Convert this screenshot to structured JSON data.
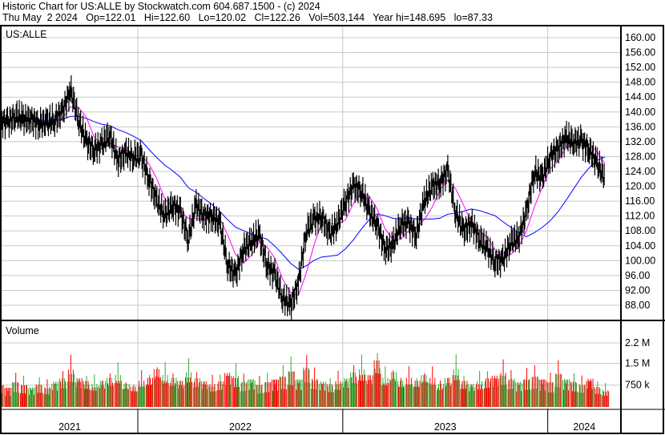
{
  "header": {
    "title": "Historic Chart for US:ALLE by Stockwatch.com 604.687.1500 - (c) 2024",
    "quote": "Thu May  2 2024   Op=122.01   Hi=122.60   Lo=120.02   Cl=122.26   Vol=503,144   Year hi=148.695   lo=87.33"
  },
  "colors": {
    "price": "#000000",
    "ma_short": "#ff00ff",
    "ma_long": "#0000ff",
    "vol_up": "#33aa33",
    "vol_down": "#ff0000",
    "grid": "#c8c8c8"
  },
  "chart_data": [
    {
      "type": "line",
      "title": "US:ALLE",
      "ylim": [
        86,
        162
      ],
      "yticks": [
        "160.00",
        "156.00",
        "152.00",
        "148.00",
        "144.00",
        "140.00",
        "136.00",
        "132.00",
        "128.00",
        "124.00",
        "120.00",
        "116.00",
        "112.00",
        "108.00",
        "104.00",
        "100.00",
        "96.00",
        "92.00",
        "88.00"
      ],
      "xticks": [
        "2021",
        "2022",
        "2023",
        "2024"
      ],
      "grid": true,
      "dates": [
        "2021-04-30",
        "2021-05-14",
        "2021-05-28",
        "2021-06-11",
        "2021-06-25",
        "2021-07-09",
        "2021-07-23",
        "2021-08-06",
        "2021-08-20",
        "2021-09-03",
        "2021-09-17",
        "2021-10-01",
        "2021-10-15",
        "2021-10-29",
        "2021-11-12",
        "2021-11-26",
        "2021-12-10",
        "2021-12-24",
        "2022-01-07",
        "2022-01-21",
        "2022-02-04",
        "2022-02-18",
        "2022-03-04",
        "2022-03-18",
        "2022-04-01",
        "2022-04-15",
        "2022-04-29",
        "2022-05-13",
        "2022-05-27",
        "2022-06-10",
        "2022-06-24",
        "2022-07-08",
        "2022-07-22",
        "2022-08-05",
        "2022-08-19",
        "2022-09-02",
        "2022-09-16",
        "2022-09-30",
        "2022-10-14",
        "2022-10-28",
        "2022-11-11",
        "2022-11-25",
        "2022-12-09",
        "2022-12-23",
        "2023-01-06",
        "2023-01-20",
        "2023-02-03",
        "2023-02-17",
        "2023-03-03",
        "2023-03-17",
        "2023-03-31",
        "2023-04-14",
        "2023-04-28",
        "2023-05-12",
        "2023-05-26",
        "2023-06-09",
        "2023-06-23",
        "2023-07-07",
        "2023-07-21",
        "2023-08-04",
        "2023-08-18",
        "2023-09-01",
        "2023-09-15",
        "2023-09-29",
        "2023-10-13",
        "2023-10-27",
        "2023-11-10",
        "2023-11-24",
        "2023-12-08",
        "2023-12-22",
        "2024-01-05",
        "2024-01-19",
        "2024-02-02",
        "2024-02-16",
        "2024-03-01",
        "2024-03-15",
        "2024-03-29",
        "2024-04-12"
      ],
      "close": [
        138,
        137,
        139,
        138,
        138,
        137,
        137,
        138,
        140,
        146,
        138,
        132,
        130,
        131,
        134,
        127,
        129,
        128,
        128,
        122,
        116,
        112,
        115,
        113,
        106,
        115,
        112,
        112,
        110,
        99,
        96,
        103,
        105,
        107,
        99,
        96,
        90,
        88,
        94,
        108,
        111,
        112,
        107,
        110,
        116,
        120,
        119,
        113,
        110,
        103,
        104,
        110,
        110,
        107,
        116,
        120,
        121,
        124,
        113,
        108,
        110,
        106,
        103,
        100,
        100,
        105,
        106,
        113,
        124,
        122,
        128,
        130,
        133,
        132,
        132,
        130,
        126,
        122
      ],
      "series": [
        {
          "name": "",
          "kind": "price"
        },
        {
          "name": "",
          "kind": "ma_short"
        },
        {
          "name": "",
          "kind": "ma_long"
        }
      ]
    },
    {
      "type": "bar",
      "title": "Volume",
      "yticks": [
        "2.2 M",
        "1.5 M",
        "750 k"
      ],
      "ylim": [
        0,
        2.9
      ],
      "unit": "M",
      "volume": [
        0.8,
        0.7,
        0.9,
        0.8,
        0.7,
        0.8,
        0.7,
        0.9,
        1.0,
        1.3,
        1.0,
        0.9,
        0.8,
        0.9,
        1.0,
        1.1,
        0.8,
        0.7,
        0.9,
        1.0,
        1.3,
        1.1,
        1.0,
        0.9,
        1.2,
        1.0,
        0.9,
        0.8,
        0.9,
        1.2,
        1.1,
        0.9,
        1.0,
        0.8,
        0.9,
        1.0,
        1.1,
        1.3,
        1.0,
        1.4,
        1.0,
        0.9,
        0.8,
        0.9,
        1.0,
        1.2,
        1.3,
        1.1,
        1.6,
        1.0,
        1.2,
        0.9,
        1.0,
        0.9,
        1.1,
        1.0,
        0.8,
        1.0,
        1.3,
        0.9,
        0.8,
        0.9,
        1.0,
        1.1,
        1.2,
        1.0,
        0.9,
        1.0,
        1.1,
        1.0,
        0.9,
        1.2,
        1.0,
        0.9,
        0.8,
        1.0,
        0.7,
        0.6
      ]
    }
  ]
}
